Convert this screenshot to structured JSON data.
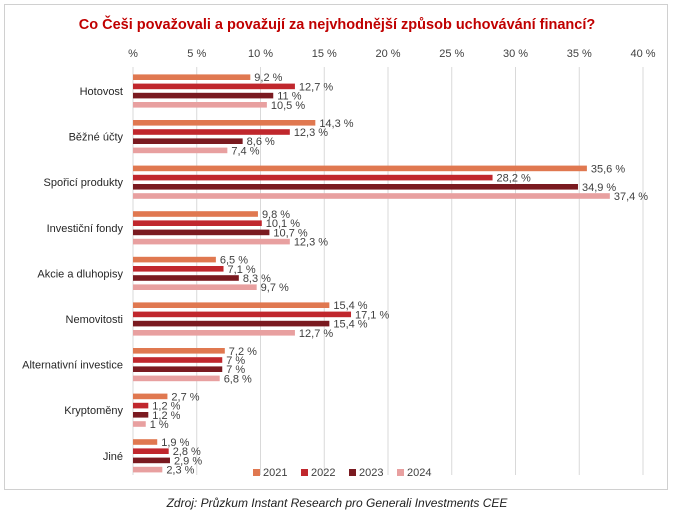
{
  "chart_data": {
    "type": "bar",
    "orientation": "horizontal",
    "title": "Co Češi považovali a považují za nejvhodnější způsob uchovávání financí?",
    "categories": [
      "Hotovost",
      "Běžné účty",
      "Spořicí produkty",
      "Investiční fondy",
      "Akcie a dluhopisy",
      "Nemovitosti",
      "Alternativní investice",
      "Kryptoměny",
      "Jiné"
    ],
    "series": [
      {
        "name": "2021",
        "color": "#e07850",
        "values": [
          9.2,
          14.3,
          35.6,
          9.8,
          6.5,
          15.4,
          7.2,
          2.7,
          1.9
        ]
      },
      {
        "name": "2022",
        "color": "#c0272d",
        "values": [
          12.7,
          12.3,
          28.2,
          10.1,
          7.1,
          17.1,
          7,
          1.2,
          2.8
        ]
      },
      {
        "name": "2023",
        "color": "#7a1a20",
        "values": [
          11,
          8.6,
          34.9,
          10.7,
          8.3,
          15.4,
          7,
          1.2,
          2.9
        ]
      },
      {
        "name": "2024",
        "color": "#e8a0a0",
        "values": [
          10.5,
          7.4,
          37.4,
          12.3,
          9.7,
          12.7,
          6.8,
          1,
          2.3
        ]
      }
    ],
    "data_labels": [
      [
        "9,2 %",
        "14,3 %",
        "35,6 %",
        "9,8 %",
        "6,5 %",
        "15,4 %",
        "7,2 %",
        "2,7 %",
        "1,9 %"
      ],
      [
        "12,7 %",
        "12,3 %",
        "28,2 %",
        "10,1 %",
        "7,1 %",
        "17,1 %",
        "7 %",
        "1,2 %",
        "2,8 %"
      ],
      [
        "11 %",
        "8,6 %",
        "34,9 %",
        "10,7 %",
        "8,3 %",
        "15,4 %",
        "7 %",
        "1,2 %",
        "2,9 %"
      ],
      [
        "10,5 %",
        "7,4 %",
        "37,4 %",
        "12,3 %",
        "9,7 %",
        "12,7 %",
        "6,8 %",
        "1 %",
        "2,3 %"
      ]
    ],
    "xlim": [
      0,
      40
    ],
    "x_ticks": [
      0,
      5,
      10,
      15,
      20,
      25,
      30,
      35,
      40
    ],
    "x_tick_labels": [
      "%",
      "5 %",
      "10 %",
      "15 %",
      "20 %",
      "25 %",
      "30 %",
      "35 %",
      "40 %"
    ],
    "xlabel": "",
    "ylabel": "",
    "grid": true,
    "legend_position": "bottom-right"
  },
  "source": "Zdroj: Průzkum Instant Research pro Generali Investments CEE"
}
